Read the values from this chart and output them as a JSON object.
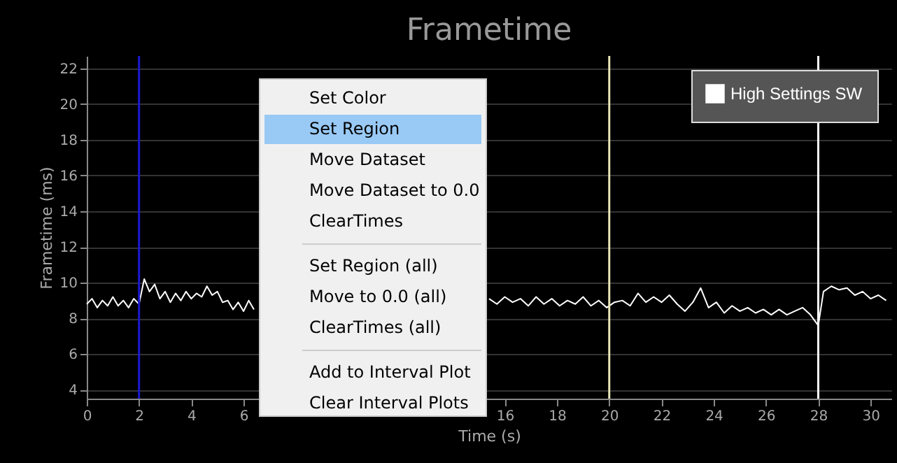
{
  "chart_data": {
    "type": "line",
    "title": "Frametime",
    "xlabel": "Time (s)",
    "ylabel": "Frametime (ms)",
    "x": [
      0,
      0.2,
      0.4,
      0.6,
      0.8,
      1.0,
      1.2,
      1.4,
      1.6,
      1.8,
      2.0,
      2.2,
      2.4,
      2.6,
      2.8,
      3.0,
      3.2,
      3.4,
      3.6,
      3.8,
      4.0,
      4.2,
      4.4,
      4.6,
      4.8,
      5.0,
      5.2,
      5.4,
      5.6,
      5.8,
      6.0,
      6.2,
      6.4,
      10,
      15.4,
      15.7,
      16.0,
      16.3,
      16.6,
      16.9,
      17.2,
      17.5,
      17.8,
      18.1,
      18.4,
      18.7,
      19.0,
      19.3,
      19.6,
      19.9,
      20.2,
      20.5,
      20.8,
      21.1,
      21.4,
      21.7,
      22.0,
      22.3,
      22.6,
      22.9,
      23.2,
      23.5,
      23.8,
      24.1,
      24.4,
      24.7,
      25.0,
      25.3,
      25.6,
      25.9,
      26.2,
      26.5,
      26.8,
      27.1,
      27.4,
      27.7,
      28.0,
      28.2,
      28.5,
      28.8,
      29.1,
      29.4,
      29.7,
      30.0,
      30.3,
      30.6
    ],
    "series": [
      {
        "name": "High Settings SW",
        "color": "#ffffff",
        "values": [
          8.8,
          9.1,
          8.6,
          9.0,
          8.7,
          9.2,
          8.7,
          9.0,
          8.6,
          9.1,
          8.8,
          10.2,
          9.5,
          9.9,
          9.1,
          9.5,
          8.9,
          9.4,
          9.0,
          9.5,
          9.1,
          9.4,
          9.2,
          9.8,
          9.3,
          9.5,
          8.9,
          9.0,
          8.5,
          8.9,
          8.4,
          9.0,
          8.5,
          null,
          9.1,
          8.8,
          9.2,
          8.9,
          9.1,
          8.7,
          9.2,
          8.8,
          9.1,
          8.7,
          9.0,
          8.8,
          9.2,
          8.7,
          9.0,
          8.6,
          8.9,
          9.0,
          8.7,
          9.4,
          8.9,
          9.2,
          8.9,
          9.3,
          8.8,
          8.4,
          8.9,
          9.7,
          8.6,
          8.9,
          8.3,
          8.7,
          8.4,
          8.6,
          8.3,
          8.5,
          8.2,
          8.5,
          8.2,
          8.4,
          8.6,
          8.2,
          7.6,
          9.5,
          9.8,
          9.6,
          9.7,
          9.3,
          9.5,
          9.1,
          9.3,
          9.0
        ]
      }
    ],
    "xlim": [
      0,
      30.8
    ],
    "xticks": [
      0,
      2,
      4,
      6,
      16,
      18,
      20,
      22,
      24,
      26,
      28,
      30
    ],
    "ylim": [
      3.5,
      22.7
    ],
    "yticks": [
      4,
      6,
      8,
      10,
      12,
      14,
      16,
      18,
      20,
      22
    ],
    "grid": "y",
    "legend": "top right",
    "ref_lines": [
      {
        "axis": "x",
        "value": 2,
        "color": "#1a1ad0"
      },
      {
        "axis": "x",
        "value": 20,
        "color": "#e6e6b8"
      },
      {
        "axis": "x",
        "value": 28,
        "color": "#ffffff"
      }
    ],
    "annotations": [
      "Set Color",
      "Set Region",
      "Move Dataset",
      "Move Dataset to 0.0",
      "ClearTimes",
      "Set Region (all)",
      "Move to 0.0 (all)",
      "ClearTimes (all)",
      "Add to Interval Plot",
      "Clear Interval Plots"
    ]
  }
}
